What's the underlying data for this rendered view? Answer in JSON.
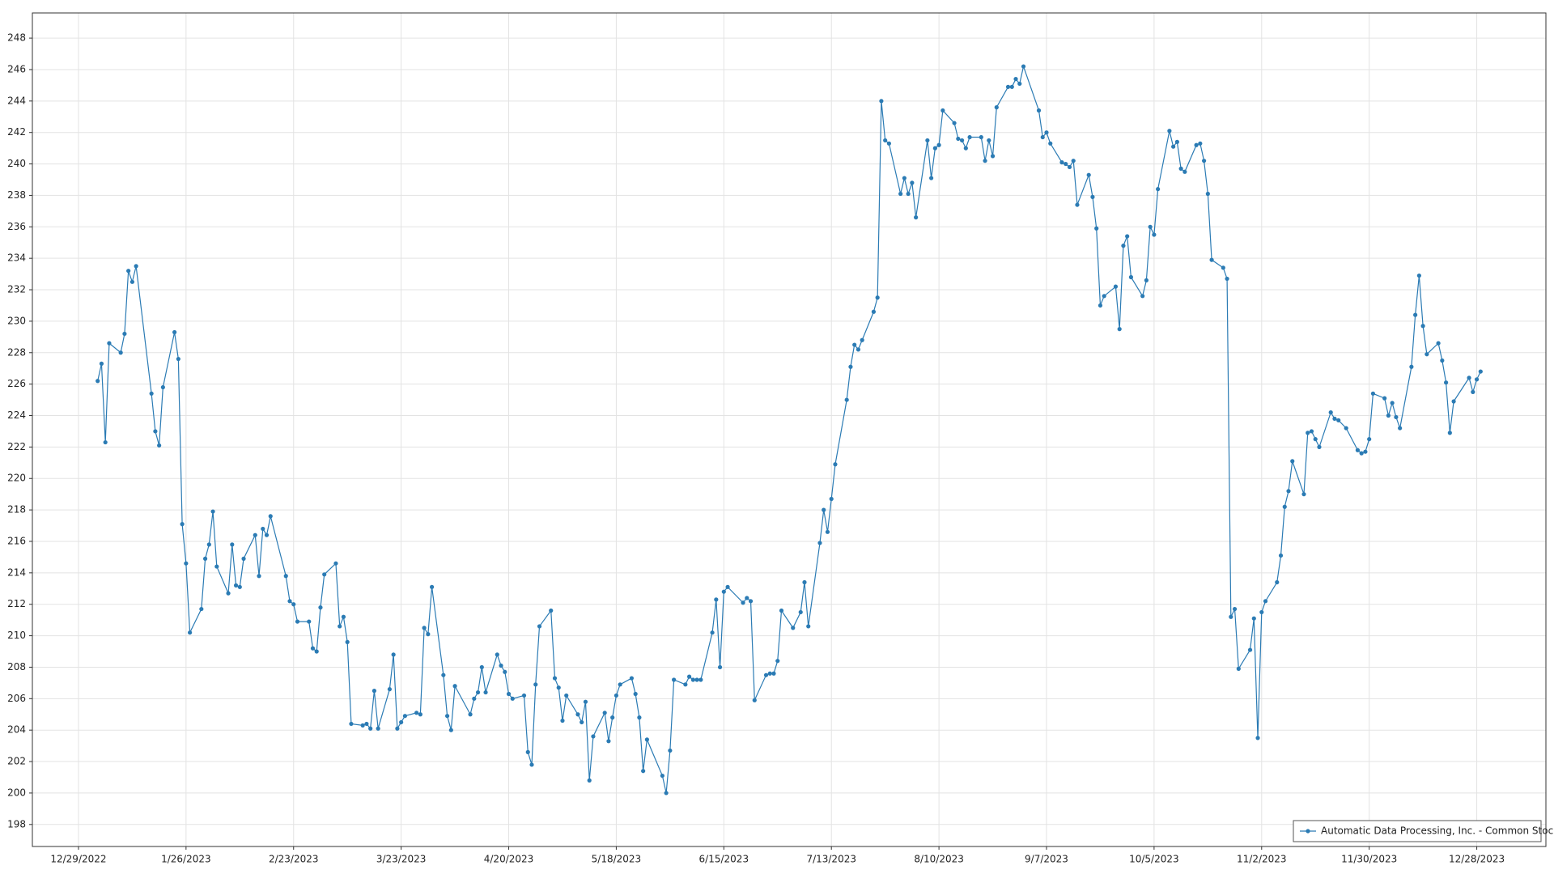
{
  "chart_data": {
    "type": "line",
    "x": [
      "2023-01-03",
      "2023-01-04",
      "2023-01-05",
      "2023-01-06",
      "2023-01-09",
      "2023-01-10",
      "2023-01-11",
      "2023-01-12",
      "2023-01-13",
      "2023-01-17",
      "2023-01-18",
      "2023-01-19",
      "2023-01-20",
      "2023-01-23",
      "2023-01-24",
      "2023-01-25",
      "2023-01-26",
      "2023-01-27",
      "2023-01-30",
      "2023-01-31",
      "2023-02-01",
      "2023-02-02",
      "2023-02-03",
      "2023-02-06",
      "2023-02-07",
      "2023-02-08",
      "2023-02-09",
      "2023-02-10",
      "2023-02-13",
      "2023-02-14",
      "2023-02-15",
      "2023-02-16",
      "2023-02-17",
      "2023-02-21",
      "2023-02-22",
      "2023-02-23",
      "2023-02-24",
      "2023-02-27",
      "2023-02-28",
      "2023-03-01",
      "2023-03-02",
      "2023-03-03",
      "2023-03-06",
      "2023-03-07",
      "2023-03-08",
      "2023-03-09",
      "2023-03-10",
      "2023-03-13",
      "2023-03-14",
      "2023-03-15",
      "2023-03-16",
      "2023-03-17",
      "2023-03-20",
      "2023-03-21",
      "2023-03-22",
      "2023-03-23",
      "2023-03-24",
      "2023-03-27",
      "2023-03-28",
      "2023-03-29",
      "2023-03-30",
      "2023-03-31",
      "2023-04-03",
      "2023-04-04",
      "2023-04-05",
      "2023-04-06",
      "2023-04-10",
      "2023-04-11",
      "2023-04-12",
      "2023-04-13",
      "2023-04-14",
      "2023-04-17",
      "2023-04-18",
      "2023-04-19",
      "2023-04-20",
      "2023-04-21",
      "2023-04-24",
      "2023-04-25",
      "2023-04-26",
      "2023-04-27",
      "2023-04-28",
      "2023-05-01",
      "2023-05-02",
      "2023-05-03",
      "2023-05-04",
      "2023-05-05",
      "2023-05-08",
      "2023-05-09",
      "2023-05-10",
      "2023-05-11",
      "2023-05-12",
      "2023-05-15",
      "2023-05-16",
      "2023-05-17",
      "2023-05-18",
      "2023-05-19",
      "2023-05-22",
      "2023-05-23",
      "2023-05-24",
      "2023-05-25",
      "2023-05-26",
      "2023-05-30",
      "2023-05-31",
      "2023-06-01",
      "2023-06-02",
      "2023-06-05",
      "2023-06-06",
      "2023-06-07",
      "2023-06-08",
      "2023-06-09",
      "2023-06-12",
      "2023-06-13",
      "2023-06-14",
      "2023-06-15",
      "2023-06-16",
      "2023-06-20",
      "2023-06-21",
      "2023-06-22",
      "2023-06-23",
      "2023-06-26",
      "2023-06-27",
      "2023-06-28",
      "2023-06-29",
      "2023-06-30",
      "2023-07-03",
      "2023-07-05",
      "2023-07-06",
      "2023-07-07",
      "2023-07-10",
      "2023-07-11",
      "2023-07-12",
      "2023-07-13",
      "2023-07-14",
      "2023-07-17",
      "2023-07-18",
      "2023-07-19",
      "2023-07-20",
      "2023-07-21",
      "2023-07-24",
      "2023-07-25",
      "2023-07-26",
      "2023-07-27",
      "2023-07-28",
      "2023-07-31",
      "2023-08-01",
      "2023-08-02",
      "2023-08-03",
      "2023-08-04",
      "2023-08-07",
      "2023-08-08",
      "2023-08-09",
      "2023-08-10",
      "2023-08-11",
      "2023-08-14",
      "2023-08-15",
      "2023-08-16",
      "2023-08-17",
      "2023-08-18",
      "2023-08-21",
      "2023-08-22",
      "2023-08-23",
      "2023-08-24",
      "2023-08-25",
      "2023-08-28",
      "2023-08-29",
      "2023-08-30",
      "2023-08-31",
      "2023-09-01",
      "2023-09-05",
      "2023-09-06",
      "2023-09-07",
      "2023-09-08",
      "2023-09-11",
      "2023-09-12",
      "2023-09-13",
      "2023-09-14",
      "2023-09-15",
      "2023-09-18",
      "2023-09-19",
      "2023-09-20",
      "2023-09-21",
      "2023-09-22",
      "2023-09-25",
      "2023-09-26",
      "2023-09-27",
      "2023-09-28",
      "2023-09-29",
      "2023-10-02",
      "2023-10-03",
      "2023-10-04",
      "2023-10-05",
      "2023-10-06",
      "2023-10-09",
      "2023-10-10",
      "2023-10-11",
      "2023-10-12",
      "2023-10-13",
      "2023-10-16",
      "2023-10-17",
      "2023-10-18",
      "2023-10-19",
      "2023-10-20",
      "2023-10-23",
      "2023-10-24",
      "2023-10-25",
      "2023-10-26",
      "2023-10-27",
      "2023-10-30",
      "2023-10-31",
      "2023-11-01",
      "2023-11-02",
      "2023-11-03",
      "2023-11-06",
      "2023-11-07",
      "2023-11-08",
      "2023-11-09",
      "2023-11-10",
      "2023-11-13",
      "2023-11-14",
      "2023-11-15",
      "2023-11-16",
      "2023-11-17",
      "2023-11-20",
      "2023-11-21",
      "2023-11-22",
      "2023-11-24",
      "2023-11-27",
      "2023-11-28",
      "2023-11-29",
      "2023-11-30",
      "2023-12-01",
      "2023-12-04",
      "2023-12-05",
      "2023-12-06",
      "2023-12-07",
      "2023-12-08",
      "2023-12-11",
      "2023-12-12",
      "2023-12-13",
      "2023-12-14",
      "2023-12-15",
      "2023-12-18",
      "2023-12-19",
      "2023-12-20",
      "2023-12-21",
      "2023-12-22",
      "2023-12-26",
      "2023-12-27",
      "2023-12-28",
      "2023-12-29"
    ],
    "series": [
      {
        "name": "Automatic Data Processing, Inc. - Common Stock",
        "color": "#2b7bb4",
        "values": [
          226.2,
          227.3,
          222.3,
          228.6,
          228.0,
          229.2,
          233.2,
          232.5,
          233.5,
          225.4,
          223.0,
          222.1,
          225.8,
          229.3,
          227.6,
          217.1,
          214.6,
          210.2,
          211.7,
          214.9,
          215.8,
          217.9,
          214.4,
          212.7,
          215.8,
          213.2,
          213.1,
          214.9,
          216.4,
          213.8,
          216.8,
          216.4,
          217.6,
          213.8,
          212.2,
          212.0,
          210.9,
          210.9,
          209.2,
          209.0,
          211.8,
          213.9,
          214.6,
          210.6,
          211.2,
          209.6,
          204.4,
          204.3,
          204.4,
          204.1,
          206.5,
          204.1,
          206.6,
          208.8,
          204.1,
          204.5,
          204.9,
          205.1,
          205.0,
          210.5,
          210.1,
          213.1,
          207.5,
          204.9,
          204.0,
          206.8,
          205.0,
          206.0,
          206.4,
          208.0,
          206.4,
          208.8,
          208.1,
          207.7,
          206.3,
          206.0,
          206.2,
          202.6,
          201.8,
          206.9,
          210.6,
          211.6,
          207.3,
          206.7,
          204.6,
          206.2,
          205.0,
          204.5,
          205.8,
          200.8,
          203.6,
          205.1,
          203.3,
          204.8,
          206.2,
          206.9,
          207.3,
          206.3,
          204.8,
          201.4,
          203.4,
          201.1,
          200.0,
          202.7,
          207.2,
          206.9,
          207.4,
          207.2,
          207.2,
          207.2,
          210.2,
          212.3,
          208.0,
          212.8,
          213.1,
          212.1,
          212.4,
          212.2,
          205.9,
          207.5,
          207.6,
          207.6,
          208.4,
          211.6,
          210.5,
          211.5,
          213.4,
          210.6,
          215.9,
          218.0,
          216.6,
          218.7,
          220.9,
          225.0,
          227.1,
          228.5,
          228.2,
          228.8,
          230.6,
          231.5,
          244.0,
          241.5,
          241.3,
          238.1,
          239.1,
          238.1,
          238.8,
          236.6,
          241.5,
          239.1,
          241.0,
          241.2,
          243.4,
          242.6,
          241.6,
          241.5,
          241.0,
          241.7,
          241.7,
          240.2,
          241.5,
          240.5,
          243.6,
          244.9,
          244.9,
          245.4,
          245.1,
          246.2,
          243.4,
          241.7,
          242.0,
          241.3,
          240.1,
          240.0,
          239.8,
          240.2,
          237.4,
          239.3,
          237.9,
          235.9,
          231.0,
          231.6,
          232.2,
          229.5,
          234.8,
          235.4,
          232.8,
          231.6,
          232.6,
          236.0,
          235.5,
          238.4,
          242.1,
          241.1,
          241.4,
          239.7,
          239.5,
          241.2,
          241.3,
          240.2,
          238.1,
          233.9,
          233.4,
          232.7,
          211.2,
          211.7,
          207.9,
          209.1,
          211.1,
          203.5,
          211.5,
          212.2,
          213.4,
          215.1,
          218.2,
          219.2,
          221.1,
          219.0,
          222.9,
          223.0,
          222.5,
          222.0,
          224.2,
          223.8,
          223.7,
          223.2,
          221.8,
          221.6,
          221.7,
          222.5,
          225.4,
          225.1,
          224.0,
          224.8,
          223.9,
          223.2,
          227.1,
          230.4,
          232.9,
          229.7,
          227.9,
          228.6,
          227.5,
          226.1,
          222.9,
          224.9,
          226.4,
          225.5,
          226.3,
          226.8
        ]
      }
    ],
    "xlim": [
      "2022-12-17",
      "2024-01-15"
    ],
    "xticks": [
      {
        "value": "2022-12-29",
        "label": "12/29/2022"
      },
      {
        "value": "2023-01-26",
        "label": "1/26/2023"
      },
      {
        "value": "2023-02-23",
        "label": "2/23/2023"
      },
      {
        "value": "2023-03-23",
        "label": "3/23/2023"
      },
      {
        "value": "2023-04-20",
        "label": "4/20/2023"
      },
      {
        "value": "2023-05-18",
        "label": "5/18/2023"
      },
      {
        "value": "2023-06-15",
        "label": "6/15/2023"
      },
      {
        "value": "2023-07-13",
        "label": "7/13/2023"
      },
      {
        "value": "2023-08-10",
        "label": "8/10/2023"
      },
      {
        "value": "2023-09-07",
        "label": "9/7/2023"
      },
      {
        "value": "2023-10-05",
        "label": "10/5/2023"
      },
      {
        "value": "2023-11-02",
        "label": "11/2/2023"
      },
      {
        "value": "2023-11-30",
        "label": "11/30/2023"
      },
      {
        "value": "2023-12-28",
        "label": "12/28/2023"
      }
    ],
    "ylim": [
      196.6,
      249.6
    ],
    "yticks": [
      198,
      200,
      202,
      204,
      206,
      208,
      210,
      212,
      214,
      216,
      218,
      220,
      222,
      224,
      226,
      228,
      230,
      232,
      234,
      236,
      238,
      240,
      242,
      244,
      246,
      248
    ],
    "grid": true,
    "legend": "lower right"
  }
}
